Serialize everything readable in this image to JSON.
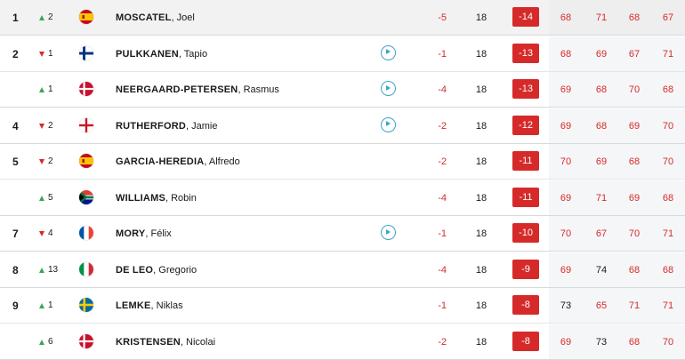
{
  "leaderboard": {
    "rows": [
      {
        "pos": "1",
        "move": "2",
        "dir": "up",
        "flag": "ESP",
        "last": "MOSCATEL",
        "first": "Joel",
        "video": false,
        "today": "-5",
        "thru": "18",
        "total": "-14",
        "rounds": [
          "68",
          "71",
          "68",
          "67"
        ],
        "highlight": true
      },
      {
        "pos": "2",
        "move": "1",
        "dir": "down",
        "flag": "FIN",
        "last": "PULKKANEN",
        "first": "Tapio",
        "video": true,
        "today": "-1",
        "thru": "18",
        "total": "-13",
        "rounds": [
          "68",
          "69",
          "67",
          "71"
        ]
      },
      {
        "pos": "",
        "move": "1",
        "dir": "up",
        "flag": "DEN",
        "last": "NEERGAARD-PETERSEN",
        "first": "Rasmus",
        "video": true,
        "today": "-4",
        "thru": "18",
        "total": "-13",
        "rounds": [
          "69",
          "68",
          "70",
          "68"
        ]
      },
      {
        "pos": "4",
        "move": "2",
        "dir": "down",
        "flag": "ENG",
        "last": "RUTHERFORD",
        "first": "Jamie",
        "video": true,
        "today": "-2",
        "thru": "18",
        "total": "-12",
        "rounds": [
          "69",
          "68",
          "69",
          "70"
        ]
      },
      {
        "pos": "5",
        "move": "2",
        "dir": "down",
        "flag": "ESP",
        "last": "GARCIA-HEREDIA",
        "first": "Alfredo",
        "video": false,
        "today": "-2",
        "thru": "18",
        "total": "-11",
        "rounds": [
          "70",
          "69",
          "68",
          "70"
        ]
      },
      {
        "pos": "",
        "move": "5",
        "dir": "up",
        "flag": "RSA",
        "last": "WILLIAMS",
        "first": "Robin",
        "video": false,
        "today": "-4",
        "thru": "18",
        "total": "-11",
        "rounds": [
          "69",
          "71",
          "69",
          "68"
        ]
      },
      {
        "pos": "7",
        "move": "4",
        "dir": "down",
        "flag": "FRA",
        "last": "MORY",
        "first": "Félix",
        "video": true,
        "today": "-1",
        "thru": "18",
        "total": "-10",
        "rounds": [
          "70",
          "67",
          "70",
          "71"
        ]
      },
      {
        "pos": "8",
        "move": "13",
        "dir": "up",
        "flag": "ITA",
        "last": "DE LEO",
        "first": "Gregorio",
        "video": false,
        "today": "-4",
        "thru": "18",
        "total": "-9",
        "rounds": [
          "69",
          "74",
          "68",
          "68"
        ]
      },
      {
        "pos": "9",
        "move": "1",
        "dir": "up",
        "flag": "SWE",
        "last": "LEMKE",
        "first": "Niklas",
        "video": false,
        "today": "-1",
        "thru": "18",
        "total": "-8",
        "rounds": [
          "73",
          "65",
          "71",
          "71"
        ]
      },
      {
        "pos": "",
        "move": "6",
        "dir": "up",
        "flag": "DEN",
        "last": "KRISTENSEN",
        "first": "Nicolai",
        "video": false,
        "today": "-2",
        "thru": "18",
        "total": "-8",
        "rounds": [
          "69",
          "73",
          "68",
          "70"
        ]
      }
    ]
  },
  "colors": {
    "under_par": "#d62a2a",
    "move_up": "#3aa655",
    "move_down": "#d62a2a",
    "video": "#3ea3c8"
  },
  "par": "72"
}
